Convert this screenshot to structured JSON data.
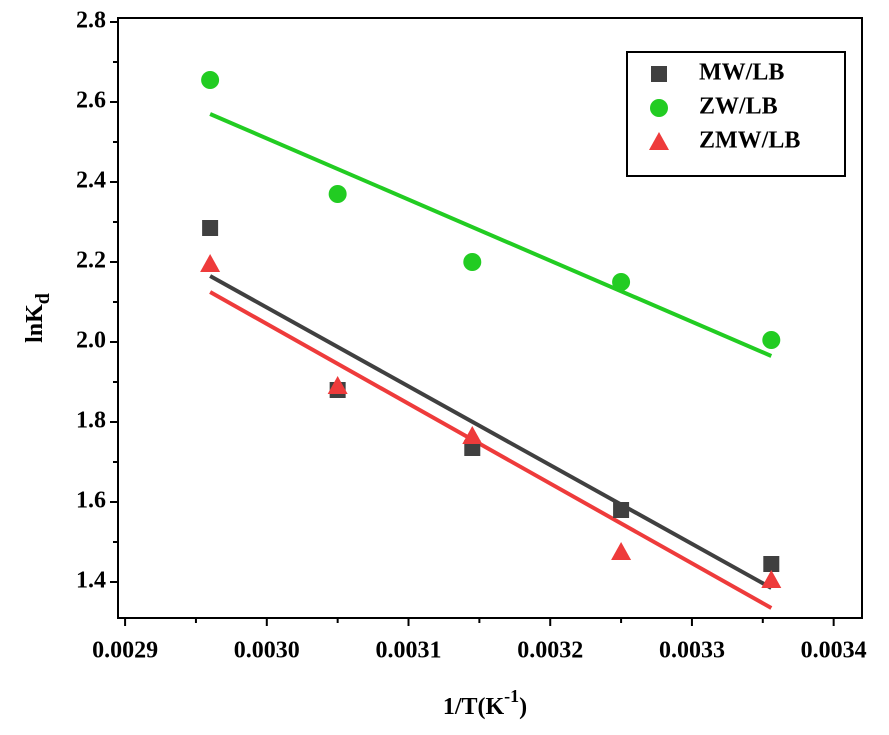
{
  "chart_data": {
    "type": "scatter",
    "xlabel": [
      "1/T(K",
      "-1",
      ")"
    ],
    "ylabel": [
      "lnK",
      "d"
    ],
    "x": [
      0.00296,
      0.00305,
      0.003145,
      0.00325,
      0.003356
    ],
    "series": [
      {
        "name": "MW/LB",
        "color": "#404040",
        "marker": "square",
        "values": [
          2.285,
          1.88,
          1.735,
          1.58,
          1.445
        ],
        "fit": [
          2.165,
          1.385
        ]
      },
      {
        "name": "ZW/LB",
        "color": "#22cc22",
        "marker": "circle",
        "values": [
          2.655,
          2.37,
          2.2,
          2.15,
          2.005
        ],
        "fit": [
          2.57,
          1.965
        ]
      },
      {
        "name": "ZMW/LB",
        "color": "#ee3b3b",
        "marker": "triangle",
        "values": [
          2.195,
          1.89,
          1.765,
          1.475,
          1.405
        ],
        "fit": [
          2.125,
          1.335
        ]
      }
    ],
    "xlim": [
      0.002895,
      0.00342
    ],
    "ylim": [
      1.31,
      2.81
    ],
    "xticks": [
      0.0029,
      {
        "value": 0.003,
        "label": "0.0030"
      },
      0.0031,
      0.0032,
      0.0033,
      0.0034
    ],
    "yticks": [
      1.4,
      1.6,
      1.8,
      {
        "value": 2,
        "label": "2.0"
      },
      2.2,
      2.4,
      2.6,
      2.8
    ],
    "legend": "upper right"
  }
}
